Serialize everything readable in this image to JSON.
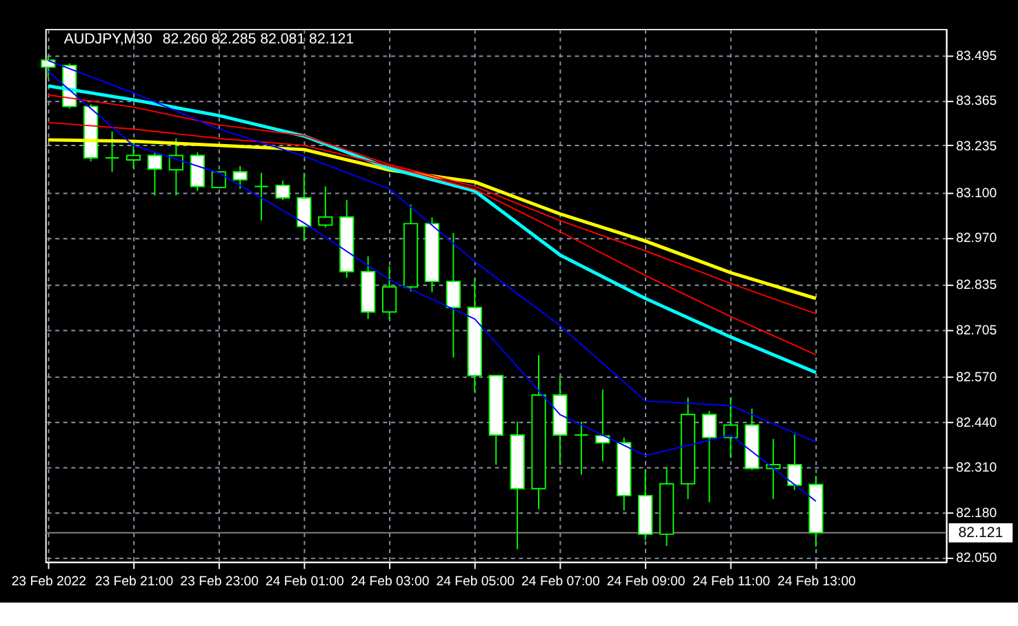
{
  "chart_data": {
    "type": "candlestick",
    "title": "AUDJPY,M30",
    "subtitle": "82.260 82.285 82.081 82.121",
    "x": [
      "2022-02-23T19:00",
      "2022-02-23T19:30",
      "2022-02-23T20:00",
      "2022-02-23T20:30",
      "2022-02-23T21:00",
      "2022-02-23T21:30",
      "2022-02-23T22:00",
      "2022-02-23T22:30",
      "2022-02-23T23:00",
      "2022-02-23T23:30",
      "2022-02-24T00:00",
      "2022-02-24T00:30",
      "2022-02-24T01:00",
      "2022-02-24T01:30",
      "2022-02-24T02:00",
      "2022-02-24T02:30",
      "2022-02-24T03:00",
      "2022-02-24T03:30",
      "2022-02-24T04:00",
      "2022-02-24T04:30",
      "2022-02-24T05:00",
      "2022-02-24T05:30",
      "2022-02-24T06:00",
      "2022-02-24T06:30",
      "2022-02-24T07:00",
      "2022-02-24T07:30",
      "2022-02-24T08:00",
      "2022-02-24T08:30",
      "2022-02-24T09:00",
      "2022-02-24T09:30",
      "2022-02-24T10:00",
      "2022-02-24T10:30",
      "2022-02-24T11:00",
      "2022-02-24T11:30",
      "2022-02-24T12:00",
      "2022-02-24T12:30",
      "2022-02-24T13:00"
    ],
    "ohlc": [
      [
        83.48,
        83.49,
        83.43,
        83.46
      ],
      [
        83.465,
        83.471,
        83.341,
        83.347
      ],
      [
        83.347,
        83.353,
        83.189,
        83.199
      ],
      [
        83.199,
        83.275,
        83.159,
        83.199
      ],
      [
        83.193,
        83.248,
        83.169,
        83.206
      ],
      [
        83.206,
        83.215,
        83.091,
        83.167
      ],
      [
        83.165,
        83.255,
        83.091,
        83.206
      ],
      [
        83.206,
        83.215,
        83.104,
        83.117
      ],
      [
        83.114,
        83.159,
        83.112,
        83.159
      ],
      [
        83.159,
        83.176,
        83.11,
        83.136
      ],
      [
        83.117,
        83.156,
        83.019,
        83.117
      ],
      [
        83.12,
        83.133,
        83.078,
        83.084
      ],
      [
        83.084,
        83.156,
        82.96,
        83.002
      ],
      [
        83.006,
        83.117,
        82.999,
        83.029
      ],
      [
        83.029,
        83.078,
        82.854,
        82.872
      ],
      [
        82.872,
        82.916,
        82.736,
        82.756
      ],
      [
        82.756,
        82.888,
        82.736,
        82.828
      ],
      [
        82.828,
        83.065,
        82.815,
        83.01
      ],
      [
        83.01,
        83.028,
        82.813,
        82.844
      ],
      [
        82.844,
        82.983,
        82.625,
        82.769
      ],
      [
        82.769,
        82.852,
        82.526,
        82.573
      ],
      [
        82.573,
        82.575,
        82.317,
        82.402
      ],
      [
        82.402,
        82.441,
        82.074,
        82.248
      ],
      [
        82.248,
        82.632,
        82.189,
        82.517
      ],
      [
        82.517,
        82.566,
        82.317,
        82.402
      ],
      [
        82.402,
        82.441,
        82.288,
        82.402
      ],
      [
        82.4,
        82.533,
        82.327,
        82.38
      ],
      [
        82.38,
        82.395,
        82.185,
        82.228
      ],
      [
        82.228,
        82.303,
        82.1,
        82.117
      ],
      [
        82.117,
        82.31,
        82.083,
        82.262
      ],
      [
        82.262,
        82.51,
        82.218,
        82.461
      ],
      [
        82.461,
        82.471,
        82.209,
        82.395
      ],
      [
        82.395,
        82.51,
        82.336,
        82.431
      ],
      [
        82.431,
        82.478,
        82.301,
        82.306
      ],
      [
        82.306,
        82.391,
        82.218,
        82.317
      ],
      [
        82.317,
        82.404,
        82.244,
        82.258
      ],
      [
        82.26,
        82.285,
        82.081,
        82.121
      ]
    ],
    "series": [
      {
        "type": "line",
        "color": "#ffff00",
        "x": [
          "2022-02-23T19:00",
          "2022-02-23T21:00",
          "2022-02-23T23:00",
          "2022-02-24T01:00",
          "2022-02-24T03:00",
          "2022-02-24T05:00",
          "2022-02-24T07:00",
          "2022-02-24T09:00",
          "2022-02-24T11:00",
          "2022-02-24T13:00"
        ],
        "values": [
          83.251,
          83.247,
          83.235,
          83.223,
          83.164,
          83.13,
          83.038,
          82.96,
          82.869,
          82.795
        ]
      },
      {
        "type": "line",
        "color": "#00ffff",
        "x": [
          "2022-02-23T19:00",
          "2022-02-23T21:00",
          "2022-02-23T23:00",
          "2022-02-24T01:00",
          "2022-02-24T03:00",
          "2022-02-24T05:00",
          "2022-02-24T07:00",
          "2022-02-24T09:00",
          "2022-02-24T11:00",
          "2022-02-24T13:00"
        ],
        "values": [
          83.406,
          83.366,
          83.321,
          83.262,
          83.169,
          83.104,
          82.92,
          82.795,
          82.684,
          82.582
        ]
      },
      {
        "type": "line",
        "color": "#ff0000",
        "x": [
          "2022-02-23T19:00",
          "2022-02-23T21:00",
          "2022-02-23T23:00",
          "2022-02-24T01:00",
          "2022-02-24T03:00",
          "2022-02-24T05:00",
          "2022-02-24T07:00",
          "2022-02-24T09:00",
          "2022-02-24T11:00",
          "2022-02-24T13:00"
        ],
        "values": [
          83.38,
          83.345,
          83.294,
          83.263,
          83.18,
          83.117,
          83.019,
          82.932,
          82.838,
          82.751
        ]
      },
      {
        "type": "line",
        "color": "#ff0000",
        "x": [
          "2022-02-23T19:00",
          "2022-02-23T21:00",
          "2022-02-23T23:00",
          "2022-02-24T01:00",
          "2022-02-24T03:00",
          "2022-02-24T05:00",
          "2022-02-24T07:00",
          "2022-02-24T09:00",
          "2022-02-24T11:00",
          "2022-02-24T13:00"
        ],
        "values": [
          83.301,
          83.282,
          83.255,
          83.235,
          83.176,
          83.109,
          82.987,
          82.861,
          82.743,
          82.633
        ]
      },
      {
        "type": "line",
        "color": "#0000ff",
        "x": [
          "2022-02-23T19:00",
          "2022-02-23T21:00",
          "2022-02-23T23:00",
          "2022-02-24T01:00",
          "2022-02-24T03:00",
          "2022-02-24T05:00",
          "2022-02-24T07:00",
          "2022-02-24T09:00",
          "2022-02-24T11:00",
          "2022-02-24T13:00"
        ],
        "values": [
          83.479,
          83.386,
          83.282,
          83.204,
          83.11,
          82.901,
          82.717,
          82.5,
          82.487,
          82.382
        ]
      },
      {
        "type": "line",
        "color": "#0000ff",
        "x": [
          "2022-02-23T19:00",
          "2022-02-23T21:00",
          "2022-02-23T23:00",
          "2022-02-24T01:00",
          "2022-02-24T03:00",
          "2022-02-24T05:00",
          "2022-02-24T07:00",
          "2022-02-24T09:00",
          "2022-02-24T11:00",
          "2022-02-24T13:00"
        ],
        "values": [
          83.448,
          83.235,
          83.156,
          83.012,
          82.849,
          82.736,
          82.461,
          82.343,
          82.402,
          82.212
        ]
      }
    ],
    "xlim": [
      "2022-02-23T18:56",
      "2022-02-24T16:03"
    ],
    "xticks": [
      {
        "value": "2022-02-23T19:00",
        "label": "23 Feb 2022"
      },
      {
        "value": "2022-02-23T21:00",
        "label": "23 Feb 21:00"
      },
      {
        "value": "2022-02-23T23:00",
        "label": "23 Feb 23:00"
      },
      {
        "value": "2022-02-24T01:00",
        "label": "24 Feb 01:00"
      },
      {
        "value": "2022-02-24T03:00",
        "label": "24 Feb 03:00"
      },
      {
        "value": "2022-02-24T05:00",
        "label": "24 Feb 05:00"
      },
      {
        "value": "2022-02-24T07:00",
        "label": "24 Feb 07:00"
      },
      {
        "value": "2022-02-24T09:00",
        "label": "24 Feb 09:00"
      },
      {
        "value": "2022-02-24T11:00",
        "label": "24 Feb 11:00"
      },
      {
        "value": "2022-02-24T13:00",
        "label": "24 Feb 13:00"
      }
    ],
    "ylim": [
      82.038,
      83.57
    ],
    "yticks": [
      {
        "value": 82.05,
        "label": "82.050"
      },
      {
        "value": 82.18,
        "label": "82.180"
      },
      {
        "value": 82.31,
        "label": "82.310"
      },
      {
        "value": 82.44,
        "label": "82.440"
      },
      {
        "value": 82.57,
        "label": "82.570"
      },
      {
        "value": 82.705,
        "label": "82.705"
      },
      {
        "value": 82.835,
        "label": "82.835"
      },
      {
        "value": 82.97,
        "label": "82.970"
      },
      {
        "value": 83.1,
        "label": "83.100"
      },
      {
        "value": 83.235,
        "label": "83.235"
      },
      {
        "value": 83.365,
        "label": "83.365"
      },
      {
        "value": 83.495,
        "label": "83.495"
      }
    ],
    "ref_lines": [
      {
        "axis": "y",
        "value": 82.121,
        "label": "82.121",
        "color": "#808080"
      }
    ],
    "grid": true
  }
}
